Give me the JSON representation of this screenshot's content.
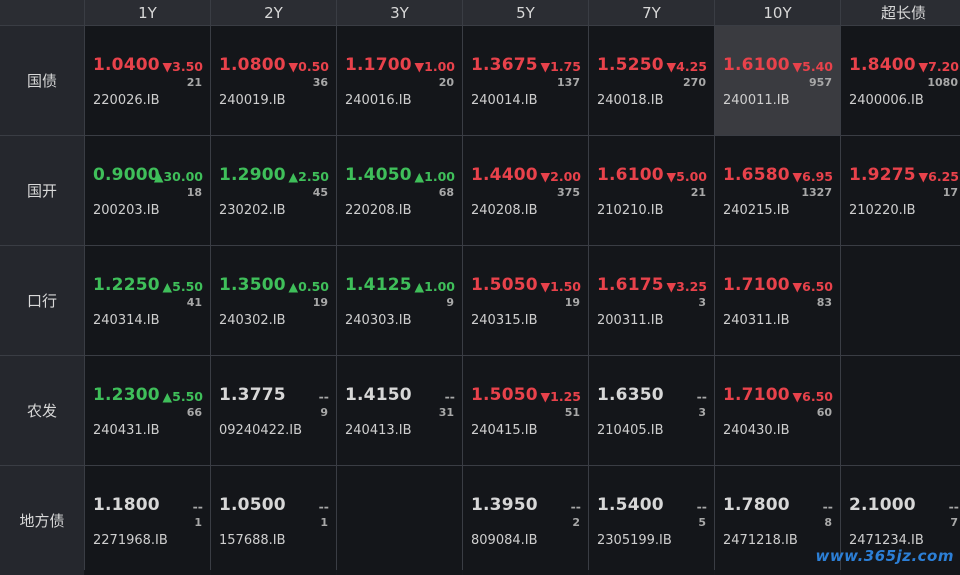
{
  "columns": [
    "1Y",
    "2Y",
    "3Y",
    "5Y",
    "7Y",
    "10Y",
    "超长债"
  ],
  "rows": [
    {
      "label": "国债",
      "cells": [
        {
          "rate": "1.0400",
          "change": "▼3.50",
          "dir": "down",
          "volume": "21",
          "code": "220026.IB"
        },
        {
          "rate": "1.0800",
          "change": "▼0.50",
          "dir": "down",
          "volume": "36",
          "code": "240019.IB"
        },
        {
          "rate": "1.1700",
          "change": "▼1.00",
          "dir": "down",
          "volume": "20",
          "code": "240016.IB"
        },
        {
          "rate": "1.3675",
          "change": "▼1.75",
          "dir": "down",
          "volume": "137",
          "code": "240014.IB"
        },
        {
          "rate": "1.5250",
          "change": "▼4.25",
          "dir": "down",
          "volume": "270",
          "code": "240018.IB"
        },
        {
          "rate": "1.6100",
          "change": "▼5.40",
          "dir": "down",
          "volume": "957",
          "code": "240011.IB",
          "selected": true
        },
        {
          "rate": "1.8400",
          "change": "▼7.20",
          "dir": "down",
          "volume": "1080",
          "code": "2400006.IB"
        }
      ]
    },
    {
      "label": "国开",
      "cells": [
        {
          "rate": "0.9000",
          "change": "▲30.00",
          "dir": "up",
          "volume": "18",
          "code": "200203.IB"
        },
        {
          "rate": "1.2900",
          "change": "▲2.50",
          "dir": "up",
          "volume": "45",
          "code": "230202.IB"
        },
        {
          "rate": "1.4050",
          "change": "▲1.00",
          "dir": "up",
          "volume": "68",
          "code": "220208.IB"
        },
        {
          "rate": "1.4400",
          "change": "▼2.00",
          "dir": "down",
          "volume": "375",
          "code": "240208.IB"
        },
        {
          "rate": "1.6100",
          "change": "▼5.00",
          "dir": "down",
          "volume": "21",
          "code": "210210.IB"
        },
        {
          "rate": "1.6580",
          "change": "▼6.95",
          "dir": "down",
          "volume": "1327",
          "code": "240215.IB"
        },
        {
          "rate": "1.9275",
          "change": "▼6.25",
          "dir": "down",
          "volume": "17",
          "code": "210220.IB"
        }
      ]
    },
    {
      "label": "口行",
      "cells": [
        {
          "rate": "1.2250",
          "change": "▲5.50",
          "dir": "up",
          "volume": "41",
          "code": "240314.IB"
        },
        {
          "rate": "1.3500",
          "change": "▲0.50",
          "dir": "up",
          "volume": "19",
          "code": "240302.IB"
        },
        {
          "rate": "1.4125",
          "change": "▲1.00",
          "dir": "up",
          "volume": "9",
          "code": "240303.IB"
        },
        {
          "rate": "1.5050",
          "change": "▼1.50",
          "dir": "down",
          "volume": "19",
          "code": "240315.IB"
        },
        {
          "rate": "1.6175",
          "change": "▼3.25",
          "dir": "down",
          "volume": "3",
          "code": "200311.IB"
        },
        {
          "rate": "1.7100",
          "change": "▼6.50",
          "dir": "down",
          "volume": "83",
          "code": "240311.IB"
        },
        null
      ]
    },
    {
      "label": "农发",
      "cells": [
        {
          "rate": "1.2300",
          "change": "▲5.50",
          "dir": "up",
          "volume": "66",
          "code": "240431.IB"
        },
        {
          "rate": "1.3775",
          "change": "--",
          "dir": "flat",
          "volume": "9",
          "code": "09240422.IB"
        },
        {
          "rate": "1.4150",
          "change": "--",
          "dir": "flat",
          "volume": "31",
          "code": "240413.IB"
        },
        {
          "rate": "1.5050",
          "change": "▼1.25",
          "dir": "down",
          "volume": "51",
          "code": "240415.IB"
        },
        {
          "rate": "1.6350",
          "change": "--",
          "dir": "flat",
          "volume": "3",
          "code": "210405.IB"
        },
        {
          "rate": "1.7100",
          "change": "▼6.50",
          "dir": "down",
          "volume": "60",
          "code": "240430.IB"
        },
        null
      ]
    },
    {
      "label": "地方债",
      "cells": [
        {
          "rate": "1.1800",
          "change": "--",
          "dir": "flat",
          "volume": "1",
          "code": "2271968.IB"
        },
        {
          "rate": "1.0500",
          "change": "--",
          "dir": "flat",
          "volume": "1",
          "code": "157688.IB"
        },
        null,
        {
          "rate": "1.3950",
          "change": "--",
          "dir": "flat",
          "volume": "2",
          "code": "809084.IB"
        },
        {
          "rate": "1.5400",
          "change": "--",
          "dir": "flat",
          "volume": "5",
          "code": "2305199.IB"
        },
        {
          "rate": "1.7800",
          "change": "--",
          "dir": "flat",
          "volume": "8",
          "code": "2471218.IB"
        },
        {
          "rate": "2.1000",
          "change": "--",
          "dir": "flat",
          "volume": "7",
          "code": "2471234.IB"
        }
      ]
    }
  ],
  "colors": {
    "up": "#3fbf5a",
    "down": "#e8424b",
    "flat": "#d7d7d7",
    "selected_bg": "#3a3b40"
  },
  "watermark": "www.365jz.com"
}
